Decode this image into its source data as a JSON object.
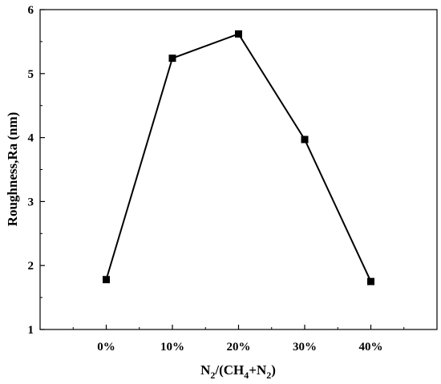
{
  "chart_data": {
    "type": "line",
    "xlabel_parts": [
      "N",
      "2",
      "/(CH",
      "4",
      "+N",
      "2",
      ")"
    ],
    "ylabel": "Roughness,Ra (nm)",
    "categories": [
      "0%",
      "10%",
      "20%",
      "30%",
      "40%"
    ],
    "x": [
      0,
      10,
      20,
      30,
      40
    ],
    "values": [
      1.78,
      5.24,
      5.62,
      3.97,
      1.75
    ],
    "xlim": [
      -10,
      50
    ],
    "ylim": [
      1,
      6
    ],
    "yticks": [
      "1",
      "2",
      "3",
      "4",
      "5",
      "6"
    ],
    "marker": "square",
    "line_color": "#000000",
    "grid": false,
    "legend": "none"
  }
}
